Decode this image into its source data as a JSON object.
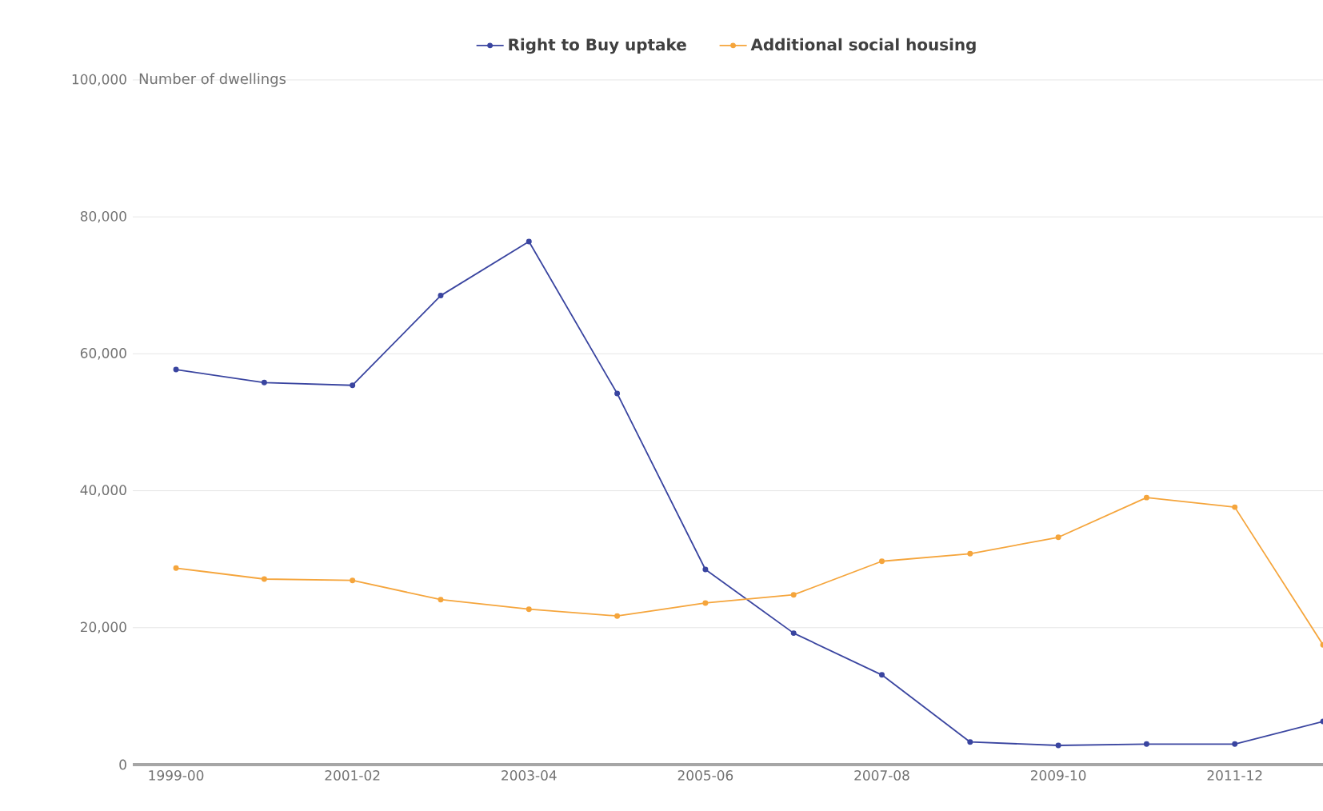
{
  "chart_data": {
    "type": "line",
    "ylabel": "Number of dwellings",
    "categories": [
      "1999-00",
      null,
      "2001-02",
      null,
      "2003-04",
      null,
      "2005-06",
      null,
      "2007-08",
      null,
      "2009-10",
      null,
      "2011-12",
      null
    ],
    "series": [
      {
        "name": "Right to Buy uptake",
        "color": "#3a45a0",
        "values": [
          57700,
          55800,
          55400,
          68500,
          76400,
          54200,
          28500,
          19200,
          13100,
          3300,
          2800,
          3000,
          3000,
          6300
        ]
      },
      {
        "name": "Additional social housing",
        "color": "#f5a53c",
        "values": [
          28700,
          27100,
          26900,
          24100,
          22700,
          21700,
          23600,
          24800,
          29700,
          30800,
          33200,
          39000,
          37600,
          17500
        ]
      }
    ],
    "ylim": [
      0,
      100000
    ],
    "yticks": [
      0,
      {
        "value": 20000,
        "label": "20,000"
      },
      {
        "value": 40000,
        "label": "40,000"
      },
      {
        "value": 60000,
        "label": "60,000"
      },
      {
        "value": 80000,
        "label": "80,000"
      },
      {
        "value": 100000,
        "label": "100,000"
      }
    ],
    "grid": "y",
    "legend": "top",
    "marker": "circle",
    "line_style": "solid"
  }
}
